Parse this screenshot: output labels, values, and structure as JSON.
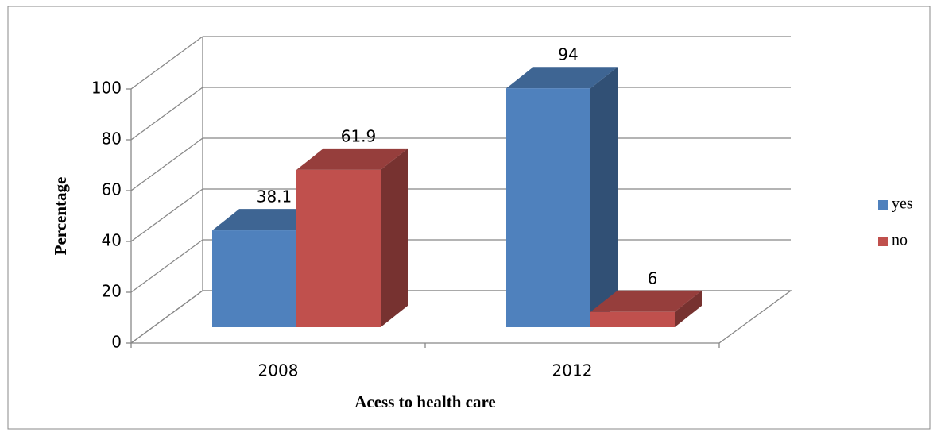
{
  "chart_data": {
    "type": "bar3d",
    "x_label": "Acess to health care",
    "y_label": "Percentage",
    "categories": [
      "2008",
      "2012"
    ],
    "series": [
      {
        "name": "yes",
        "color": "#4f81bd",
        "values": [
          38.1,
          94
        ]
      },
      {
        "name": "no",
        "color": "#c0504d",
        "values": [
          61.9,
          6
        ]
      }
    ],
    "ylim": [
      0,
      100
    ],
    "yticks": [
      0,
      20,
      40,
      60,
      80,
      100
    ],
    "grid": true,
    "legend": "right"
  }
}
